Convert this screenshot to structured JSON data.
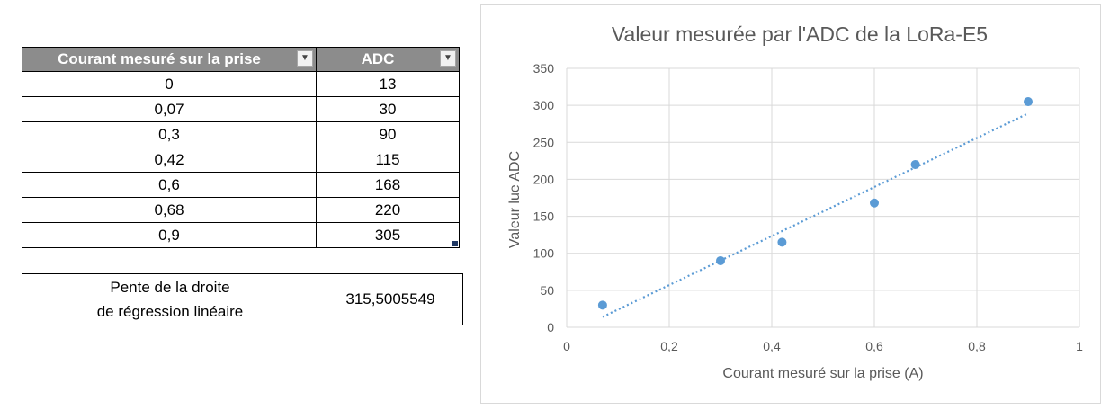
{
  "table": {
    "headers": [
      "Courant mesuré sur la prise",
      "ADC"
    ],
    "rows": [
      [
        "0",
        "13"
      ],
      [
        "0,07",
        "30"
      ],
      [
        "0,3",
        "90"
      ],
      [
        "0,42",
        "115"
      ],
      [
        "0,6",
        "168"
      ],
      [
        "0,68",
        "220"
      ],
      [
        "0,9",
        "305"
      ]
    ]
  },
  "slope": {
    "label_line1": "Pente de la droite",
    "label_line2": "de régression linéaire",
    "value": "315,5005549"
  },
  "chart_data": {
    "type": "scatter",
    "title": "Valeur mesurée par l'ADC de la LoRa-E5",
    "xlabel": "Courant mesuré sur la prise (A)",
    "ylabel": "Valeur lue ADC",
    "xlim": [
      0,
      1
    ],
    "ylim": [
      0,
      350
    ],
    "xticks": [
      0,
      0.2,
      0.4,
      0.6,
      0.8,
      1
    ],
    "xtick_labels": [
      "0",
      "0,2",
      "0,4",
      "0,6",
      "0,8",
      "1"
    ],
    "yticks": [
      0,
      50,
      100,
      150,
      200,
      250,
      300,
      350
    ],
    "ytick_labels": [
      "0",
      "50",
      "100",
      "150",
      "200",
      "250",
      "300",
      "350"
    ],
    "grid": true,
    "points": [
      {
        "x": 0.07,
        "y": 30
      },
      {
        "x": 0.3,
        "y": 90
      },
      {
        "x": 0.42,
        "y": 115
      },
      {
        "x": 0.6,
        "y": 168
      },
      {
        "x": 0.68,
        "y": 220
      },
      {
        "x": 0.9,
        "y": 305
      }
    ],
    "trendline": {
      "type": "linear",
      "style": "dotted",
      "x": [
        0.07,
        0.9
      ],
      "y": [
        14,
        289
      ]
    },
    "colors": {
      "marker": "#5b9bd5",
      "trendline": "#5b9bd5",
      "grid": "#d9d9d9",
      "axis_text": "#595959"
    }
  }
}
